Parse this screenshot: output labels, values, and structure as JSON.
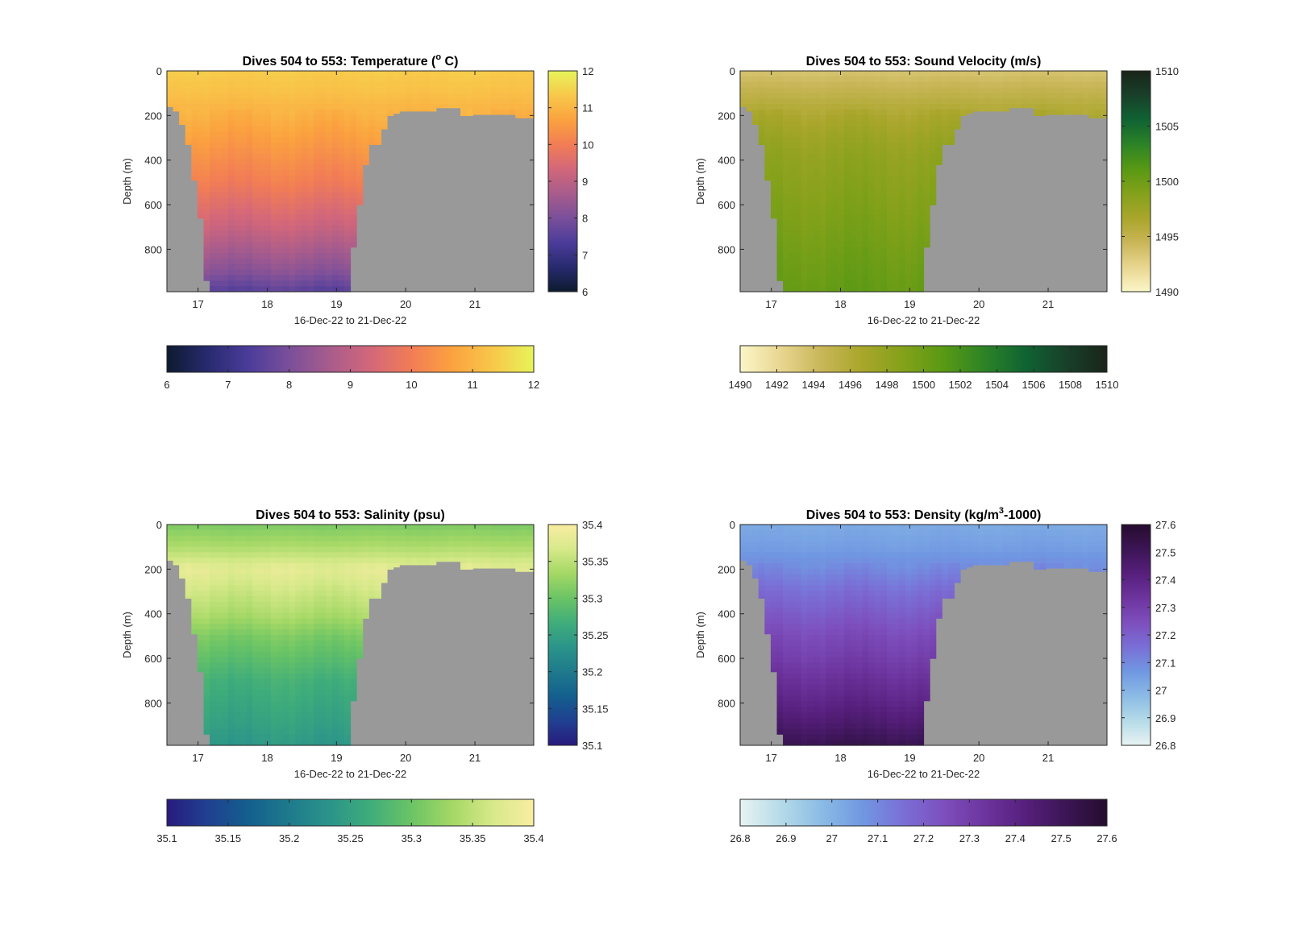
{
  "figure": {
    "panels": [
      {
        "title": "Dives 504 to 553: Temperature (",
        "title_super": "o",
        "title_tail": " C)",
        "colormap": [
          "#0d1b2f",
          "#272a6e",
          "#4b3c9a",
          "#7a4f9a",
          "#a85c8c",
          "#d3677a",
          "#f27d55",
          "#fba23f",
          "#f8c84a",
          "#e7f45a"
        ],
        "clim": [
          6,
          12
        ],
        "right_ticks": [
          "6",
          "7",
          "8",
          "9",
          "10",
          "11",
          "12"
        ],
        "bottom_ticks": [
          "6",
          "7",
          "8",
          "9",
          "10",
          "11",
          "12"
        ]
      },
      {
        "title": "Dives 504 to 553: Sound Velocity (m/s)",
        "title_super": "",
        "title_tail": "",
        "colormap": [
          "#fbf6c8",
          "#e8d690",
          "#c9b658",
          "#a9a62b",
          "#84a11a",
          "#589914",
          "#2c8326",
          "#0f6332",
          "#18402a",
          "#1a2418"
        ],
        "clim": [
          1490,
          1510
        ],
        "right_ticks": [
          "1490",
          "1495",
          "1500",
          "1505",
          "1510"
        ],
        "bottom_ticks": [
          "1490",
          "1492",
          "1494",
          "1496",
          "1498",
          "1500",
          "1502",
          "1504",
          "1506",
          "1508",
          "1510"
        ]
      },
      {
        "title": "Dives 504 to 553: Salinity (psu)",
        "title_super": "",
        "title_tail": "",
        "colormap": [
          "#281b7e",
          "#204090",
          "#135f8e",
          "#1e7a8c",
          "#2b948a",
          "#40ad7a",
          "#6bc465",
          "#a4d865",
          "#d7e98a",
          "#f9eda1"
        ],
        "clim": [
          35.1,
          35.4
        ],
        "right_ticks": [
          "35.1",
          "35.15",
          "35.2",
          "35.25",
          "35.3",
          "35.35",
          "35.4"
        ],
        "bottom_ticks": [
          "35.1",
          "35.15",
          "35.2",
          "35.25",
          "35.3",
          "35.35",
          "35.4"
        ]
      },
      {
        "title": "Dives 504 to 553: Density (kg/m",
        "title_super": "3",
        "title_tail": "-1000)",
        "colormap": [
          "#e8f3f2",
          "#b5dbe8",
          "#8bbbe5",
          "#7098e2",
          "#7a6fd6",
          "#7d4fbd",
          "#6d349e",
          "#561f7c",
          "#3b1555",
          "#260c2e"
        ],
        "clim": [
          26.8,
          27.6
        ],
        "right_ticks": [
          "26.8",
          "26.9",
          "27",
          "27.1",
          "27.2",
          "27.3",
          "27.4",
          "27.5",
          "27.6"
        ],
        "bottom_ticks": [
          "26.8",
          "26.9",
          "27",
          "27.1",
          "27.2",
          "27.3",
          "27.4",
          "27.5",
          "27.6"
        ]
      }
    ],
    "ylabel": "Depth (m)",
    "xlabel": "16-Dec-22 to 21-Dec-22",
    "y_ticks": [
      "0",
      "200",
      "400",
      "600",
      "800"
    ],
    "x_ticks": [
      "17",
      "18",
      "19",
      "20",
      "21"
    ],
    "mask_color": "#999999"
  },
  "chart_data": [
    {
      "type": "heatmap",
      "title": "Dives 504 to 553: Temperature (° C)",
      "xlabel": "16-Dec-22 to 21-Dec-22",
      "ylabel": "Depth (m)",
      "xlim": [
        16.55,
        21.85
      ],
      "ylim": [
        990,
        0
      ],
      "clim": [
        6,
        12
      ],
      "depth_bins": [
        0,
        100,
        200,
        300,
        400,
        500,
        600,
        700,
        800,
        900,
        980
      ],
      "profile_values": [
        11.4,
        11.2,
        10.9,
        10.6,
        10.3,
        10.0,
        9.6,
        9.2,
        8.7,
        8.2,
        7.6
      ],
      "colorbar": "Temperature"
    },
    {
      "type": "heatmap",
      "title": "Dives 504 to 553: Sound Velocity (m/s)",
      "xlabel": "16-Dec-22 to 21-Dec-22",
      "ylabel": "Depth (m)",
      "xlim": [
        16.55,
        21.85
      ],
      "ylim": [
        990,
        0
      ],
      "clim": [
        1490,
        1510
      ],
      "depth_bins": [
        0,
        100,
        200,
        300,
        400,
        500,
        600,
        700,
        800,
        900,
        980
      ],
      "profile_values": [
        1493.5,
        1495,
        1496.5,
        1497.5,
        1498.2,
        1498.6,
        1499,
        1499.4,
        1499.8,
        1500.2,
        1500.5
      ],
      "colorbar": "Sound Velocity"
    },
    {
      "type": "heatmap",
      "title": "Dives 504 to 553: Salinity (psu)",
      "xlabel": "16-Dec-22 to 21-Dec-22",
      "ylabel": "Depth (m)",
      "xlim": [
        16.55,
        21.85
      ],
      "ylim": [
        990,
        0
      ],
      "clim": [
        35.1,
        35.4
      ],
      "depth_bins": [
        0,
        100,
        200,
        300,
        400,
        500,
        600,
        700,
        800,
        900,
        980
      ],
      "profile_values": [
        35.31,
        35.34,
        35.38,
        35.36,
        35.34,
        35.31,
        35.29,
        35.27,
        35.26,
        35.25,
        35.24
      ],
      "colorbar": "Salinity"
    },
    {
      "type": "heatmap",
      "title": "Dives 504 to 553: Density (kg/m3-1000)",
      "xlabel": "16-Dec-22 to 21-Dec-22",
      "ylabel": "Depth (m)",
      "xlim": [
        16.55,
        21.85
      ],
      "ylim": [
        990,
        0
      ],
      "clim": [
        26.8,
        27.6
      ],
      "depth_bins": [
        0,
        100,
        200,
        300,
        400,
        500,
        600,
        700,
        800,
        900,
        980
      ],
      "profile_values": [
        27.02,
        27.05,
        27.1,
        27.16,
        27.21,
        27.26,
        27.3,
        27.35,
        27.4,
        27.46,
        27.52
      ],
      "colorbar": "Density"
    }
  ]
}
